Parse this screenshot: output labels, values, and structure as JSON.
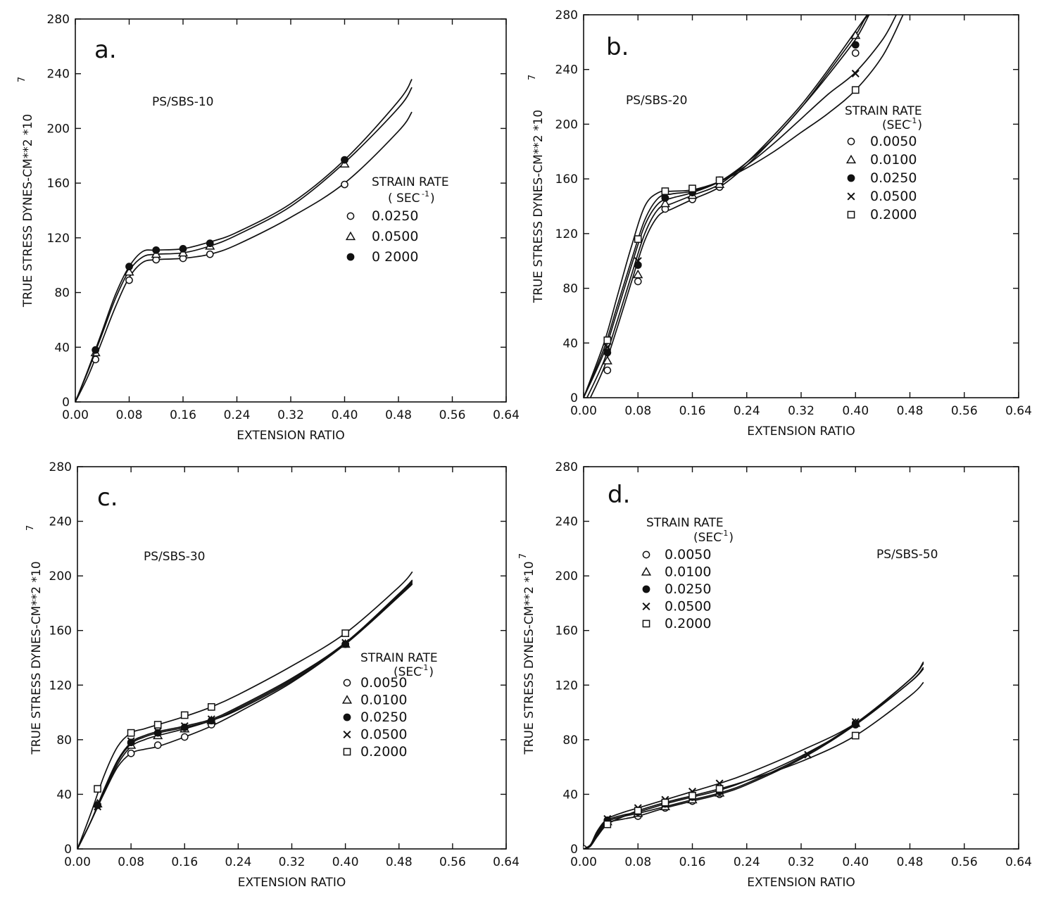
{
  "chart_data": [
    {
      "type": "line",
      "panel_letter": "a.",
      "sample_label": "PS/SBS-10",
      "xlabel": "EXTENSION RATIO",
      "ylabel": "TRUE STRESS DYNES-CM**2 *10",
      "ylabel_exponent": "7",
      "xlim": [
        0.0,
        0.64
      ],
      "ylim": [
        0,
        280
      ],
      "x_ticks": [
        "0.00",
        "0.08",
        "0.16",
        "0.24",
        "0.32",
        "0.40",
        "0.48",
        "0.56",
        "0.64"
      ],
      "y_ticks": [
        "0",
        "40",
        "80",
        "120",
        "160",
        "200",
        "240",
        "280"
      ],
      "legend_title_line1": "STRAIN RATE",
      "legend_title_line2": "( SEC",
      "legend_title_exponent": "-1",
      "legend_position": "right",
      "series": [
        {
          "name": "0.0250",
          "marker": "circle-open",
          "curve_x": [
            0.0,
            0.02,
            0.04,
            0.06,
            0.08,
            0.1,
            0.12,
            0.16,
            0.2,
            0.24,
            0.32,
            0.4,
            0.48,
            0.5
          ],
          "curve_y": [
            0,
            20,
            45,
            70,
            91,
            102,
            104,
            105,
            108,
            115,
            135,
            160,
            198,
            212
          ],
          "marker_x": [
            0.03,
            0.08,
            0.12,
            0.16,
            0.2,
            0.4
          ],
          "marker_y": [
            31,
            89,
            104,
            105,
            108,
            159
          ]
        },
        {
          "name": "0.0500",
          "marker": "triangle-open",
          "curve_x": [
            0.0,
            0.02,
            0.04,
            0.06,
            0.08,
            0.1,
            0.12,
            0.16,
            0.2,
            0.24,
            0.32,
            0.4,
            0.48,
            0.5
          ],
          "curve_y": [
            0,
            24,
            50,
            76,
            96,
            106,
            108,
            109,
            114,
            122,
            143,
            175,
            215,
            230
          ],
          "marker_x": [
            0.03,
            0.08,
            0.12,
            0.16,
            0.2,
            0.4
          ],
          "marker_y": [
            36,
            95,
            108,
            109,
            114,
            174
          ]
        },
        {
          "name": "0 2000",
          "marker": "circle-filled",
          "curve_x": [
            0.0,
            0.02,
            0.04,
            0.06,
            0.08,
            0.1,
            0.12,
            0.16,
            0.2,
            0.24,
            0.32,
            0.4,
            0.48,
            0.5
          ],
          "curve_y": [
            0,
            25,
            52,
            79,
            99,
            110,
            111,
            112,
            117,
            124,
            145,
            177,
            220,
            236
          ],
          "marker_x": [
            0.03,
            0.08,
            0.12,
            0.16,
            0.2,
            0.4
          ],
          "marker_y": [
            38,
            99,
            111,
            112,
            116,
            177
          ]
        }
      ]
    },
    {
      "type": "line",
      "panel_letter": "b.",
      "sample_label": "PS/SBS-20",
      "xlabel": "EXTENSION RATIO",
      "ylabel": "TRUE STRESS DYNES-CM**2 *10",
      "ylabel_exponent": "7",
      "xlim": [
        0.0,
        0.64
      ],
      "ylim": [
        0,
        280
      ],
      "x_ticks": [
        "0.00",
        "0.08",
        "0.16",
        "0.24",
        "0.32",
        "0.40",
        "0.48",
        "0.56",
        "0.64"
      ],
      "y_ticks": [
        "0",
        "40",
        "80",
        "120",
        "160",
        "200",
        "240",
        "280"
      ],
      "legend_title_line1": "STRAIN RATE",
      "legend_title_line2": "(SEC",
      "legend_title_exponent": "-1",
      "legend_position": "right",
      "series": [
        {
          "name": "0.0050",
          "marker": "circle-open",
          "curve_x": [
            0.01,
            0.03,
            0.05,
            0.07,
            0.09,
            0.11,
            0.13,
            0.16,
            0.2,
            0.24,
            0.28,
            0.32,
            0.36,
            0.4,
            0.42,
            0.45
          ],
          "curve_y": [
            0,
            22,
            52,
            84,
            115,
            133,
            138,
            145,
            154,
            170,
            190,
            212,
            238,
            265,
            280,
            280
          ],
          "marker_x": [
            0.035,
            0.08,
            0.12,
            0.16,
            0.2,
            0.4
          ],
          "marker_y": [
            20,
            85,
            138,
            145,
            154,
            252
          ]
        },
        {
          "name": "0.0100",
          "marker": "triangle-open",
          "curve_x": [
            0.005,
            0.03,
            0.05,
            0.07,
            0.09,
            0.11,
            0.13,
            0.16,
            0.2,
            0.24,
            0.28,
            0.32,
            0.36,
            0.4,
            0.42
          ],
          "curve_y": [
            0,
            27,
            57,
            89,
            120,
            138,
            142,
            148,
            156,
            172,
            192,
            214,
            240,
            268,
            282
          ],
          "marker_x": [
            0.035,
            0.08,
            0.12,
            0.16,
            0.2,
            0.4
          ],
          "marker_y": [
            27,
            90,
            142,
            148,
            156,
            265
          ]
        },
        {
          "name": "0.0250",
          "marker": "circle-filled",
          "curve_x": [
            0.0,
            0.03,
            0.05,
            0.07,
            0.09,
            0.11,
            0.13,
            0.16,
            0.2,
            0.24,
            0.28,
            0.32,
            0.36,
            0.4,
            0.42
          ],
          "curve_y": [
            0,
            33,
            64,
            96,
            126,
            142,
            146,
            150,
            158,
            172,
            190,
            212,
            236,
            262,
            280
          ],
          "marker_x": [
            0.035,
            0.08,
            0.12,
            0.16,
            0.2,
            0.4
          ],
          "marker_y": [
            33,
            97,
            146,
            150,
            159,
            258
          ]
        },
        {
          "name": "0.0500",
          "marker": "cross",
          "curve_x": [
            0.0,
            0.03,
            0.05,
            0.07,
            0.09,
            0.11,
            0.13,
            0.16,
            0.2,
            0.24,
            0.28,
            0.32,
            0.36,
            0.4,
            0.44,
            0.46
          ],
          "curve_y": [
            0,
            36,
            68,
            100,
            130,
            146,
            149,
            151,
            158,
            170,
            186,
            204,
            222,
            238,
            262,
            280
          ],
          "marker_x": [
            0.035,
            0.08,
            0.12,
            0.16,
            0.2,
            0.4
          ],
          "marker_y": [
            37,
            100,
            149,
            152,
            158,
            237
          ]
        },
        {
          "name": "0.2000",
          "marker": "square-open",
          "curve_x": [
            0.0,
            0.03,
            0.05,
            0.07,
            0.09,
            0.11,
            0.13,
            0.16,
            0.2,
            0.24,
            0.28,
            0.32,
            0.36,
            0.4,
            0.44,
            0.47
          ],
          "curve_y": [
            0,
            40,
            75,
            110,
            140,
            150,
            151,
            152,
            158,
            168,
            180,
            194,
            208,
            225,
            250,
            280
          ],
          "marker_x": [
            0.035,
            0.08,
            0.12,
            0.16,
            0.2,
            0.4
          ],
          "marker_y": [
            42,
            116,
            151,
            153,
            159,
            225
          ]
        }
      ]
    },
    {
      "type": "line",
      "panel_letter": "c.",
      "sample_label": "PS/SBS-30",
      "xlabel": "EXTENSION RATIO",
      "ylabel": "TRUE STRESS DYNES-CM**2 *10",
      "ylabel_exponent": "7",
      "xlim": [
        0.0,
        0.64
      ],
      "ylim": [
        0,
        280
      ],
      "x_ticks": [
        "0.00",
        "0.08",
        "0.16",
        "0.24",
        "0.32",
        "0.40",
        "0.48",
        "0.56",
        "0.64"
      ],
      "y_ticks": [
        "0",
        "40",
        "80",
        "120",
        "160",
        "200",
        "240",
        "280"
      ],
      "legend_title_line1": "STRAIN RATE",
      "legend_title_line2": "(SEC",
      "legend_title_exponent": "-1",
      "legend_position": "right",
      "series": [
        {
          "name": "0.0050",
          "marker": "circle-open",
          "curve_x": [
            0.0,
            0.02,
            0.04,
            0.06,
            0.08,
            0.1,
            0.12,
            0.16,
            0.2,
            0.24,
            0.32,
            0.4,
            0.48,
            0.5
          ],
          "curve_y": [
            0,
            20,
            41,
            60,
            70,
            73,
            75,
            82,
            90,
            100,
            122,
            150,
            185,
            195
          ],
          "marker_x": [
            0.03,
            0.08,
            0.12,
            0.16,
            0.2,
            0.4
          ],
          "marker_y": [
            32,
            70,
            76,
            82,
            91,
            150
          ]
        },
        {
          "name": "0.0100",
          "marker": "triangle-open",
          "curve_x": [
            0.0,
            0.02,
            0.04,
            0.06,
            0.08,
            0.1,
            0.12,
            0.16,
            0.2,
            0.24,
            0.32,
            0.4,
            0.48,
            0.5
          ],
          "curve_y": [
            0,
            20,
            42,
            62,
            75,
            80,
            83,
            88,
            94,
            102,
            123,
            150,
            185,
            194
          ],
          "marker_x": [
            0.03,
            0.08,
            0.12,
            0.16,
            0.2,
            0.4
          ],
          "marker_y": [
            33,
            76,
            83,
            88,
            94,
            150
          ]
        },
        {
          "name": "0.0250",
          "marker": "circle-filled",
          "curve_x": [
            0.0,
            0.02,
            0.04,
            0.06,
            0.08,
            0.1,
            0.12,
            0.16,
            0.2,
            0.24,
            0.32,
            0.4,
            0.48,
            0.5
          ],
          "curve_y": [
            0,
            20,
            43,
            64,
            77,
            82,
            85,
            89,
            94,
            103,
            124,
            151,
            186,
            196
          ],
          "marker_x": [
            0.03,
            0.08,
            0.12,
            0.16,
            0.2,
            0.4
          ],
          "marker_y": [
            32,
            78,
            85,
            89,
            94,
            150
          ]
        },
        {
          "name": "0.0500",
          "marker": "cross",
          "curve_x": [
            0.0,
            0.02,
            0.04,
            0.06,
            0.08,
            0.1,
            0.12,
            0.16,
            0.2,
            0.24,
            0.32,
            0.4,
            0.48,
            0.5
          ],
          "curve_y": [
            0,
            20,
            44,
            65,
            78,
            83,
            86,
            90,
            95,
            104,
            125,
            151,
            187,
            197
          ],
          "marker_x": [
            0.03,
            0.08,
            0.12,
            0.16,
            0.2,
            0.4
          ],
          "marker_y": [
            31,
            79,
            86,
            90,
            95,
            151
          ]
        },
        {
          "name": "0.2000",
          "marker": "square-open",
          "curve_x": [
            0.0,
            0.02,
            0.04,
            0.06,
            0.08,
            0.1,
            0.12,
            0.16,
            0.2,
            0.24,
            0.32,
            0.4,
            0.48,
            0.5
          ],
          "curve_y": [
            0,
            26,
            54,
            75,
            85,
            88,
            91,
            97,
            104,
            113,
            134,
            158,
            192,
            203
          ],
          "marker_x": [
            0.03,
            0.08,
            0.12,
            0.16,
            0.2,
            0.4
          ],
          "marker_y": [
            44,
            85,
            91,
            98,
            104,
            158
          ]
        }
      ]
    },
    {
      "type": "line",
      "panel_letter": "d.",
      "sample_label": "PS/SBS-50",
      "xlabel": "EXTENSION RATIO",
      "ylabel": "TRUE STRESS DYNES-CM**2 *10",
      "ylabel_exponent": "7",
      "xlim": [
        0.0,
        0.64
      ],
      "ylim": [
        0,
        280
      ],
      "x_ticks": [
        "0.00",
        "0.08",
        "0.16",
        "0.24",
        "0.32",
        "0.40",
        "0.48",
        "0.56",
        "0.64"
      ],
      "y_ticks": [
        "0",
        "40",
        "80",
        "120",
        "160",
        "200",
        "240",
        "280"
      ],
      "legend_title_line1": "STRAIN RATE",
      "legend_title_line2": "(SEC",
      "legend_title_exponent": "-1",
      "legend_position": "top-left",
      "series": [
        {
          "name": "0.0050",
          "marker": "circle-open",
          "curve_x": [
            0.0,
            0.01,
            0.02,
            0.035,
            0.06,
            0.08,
            0.12,
            0.16,
            0.2,
            0.24,
            0.32,
            0.4,
            0.48,
            0.5
          ],
          "curve_y": [
            0,
            2,
            10,
            19,
            22,
            24,
            30,
            35,
            40,
            47,
            66,
            91,
            122,
            133
          ],
          "marker_x": [
            0.0,
            0.035,
            0.08,
            0.12,
            0.16,
            0.2,
            0.4
          ],
          "marker_y": [
            0,
            18,
            24,
            30,
            35,
            40,
            92
          ]
        },
        {
          "name": "0.0100",
          "marker": "triangle-open",
          "curve_x": [
            0.0,
            0.01,
            0.02,
            0.035,
            0.06,
            0.08,
            0.12,
            0.16,
            0.2,
            0.24,
            0.32,
            0.4,
            0.48,
            0.5
          ],
          "curve_y": [
            0,
            2,
            11,
            20,
            24,
            26,
            31,
            36,
            41,
            48,
            67,
            92,
            124,
            136
          ],
          "marker_x": [
            0.035,
            0.08,
            0.12,
            0.16,
            0.2,
            0.4
          ],
          "marker_y": [
            20,
            26,
            31,
            36,
            41,
            92
          ]
        },
        {
          "name": "0.0250",
          "marker": "circle-filled",
          "curve_x": [
            0.0,
            0.01,
            0.02,
            0.035,
            0.06,
            0.08,
            0.12,
            0.16,
            0.2,
            0.24,
            0.32,
            0.4,
            0.48,
            0.5
          ],
          "curve_y": [
            0,
            3,
            12,
            21,
            25,
            27,
            33,
            38,
            43,
            50,
            68,
            91,
            122,
            132
          ],
          "marker_x": [
            0.035,
            0.08,
            0.12,
            0.16,
            0.2,
            0.4
          ],
          "marker_y": [
            21,
            27,
            33,
            38,
            42,
            91
          ]
        },
        {
          "name": "0.0500",
          "marker": "cross",
          "curve_x": [
            0.0,
            0.01,
            0.02,
            0.035,
            0.06,
            0.08,
            0.12,
            0.16,
            0.2,
            0.24,
            0.32,
            0.4,
            0.48,
            0.5
          ],
          "curve_y": [
            0,
            3,
            13,
            22,
            27,
            30,
            36,
            42,
            48,
            55,
            72,
            92,
            124,
            137
          ],
          "marker_x": [
            0.035,
            0.08,
            0.12,
            0.16,
            0.2,
            0.33,
            0.4
          ],
          "marker_y": [
            22,
            30,
            36,
            42,
            48,
            69,
            93
          ]
        },
        {
          "name": "0.2000",
          "marker": "square-open",
          "curve_x": [
            0.0,
            0.01,
            0.02,
            0.035,
            0.06,
            0.08,
            0.12,
            0.16,
            0.2,
            0.24,
            0.32,
            0.4,
            0.48,
            0.5
          ],
          "curve_y": [
            0,
            2,
            9,
            18,
            24,
            28,
            34,
            39,
            44,
            50,
            64,
            83,
            112,
            122
          ],
          "marker_x": [
            0.035,
            0.08,
            0.12,
            0.16,
            0.2,
            0.4
          ],
          "marker_y": [
            18,
            28,
            34,
            39,
            44,
            83
          ]
        }
      ]
    }
  ]
}
